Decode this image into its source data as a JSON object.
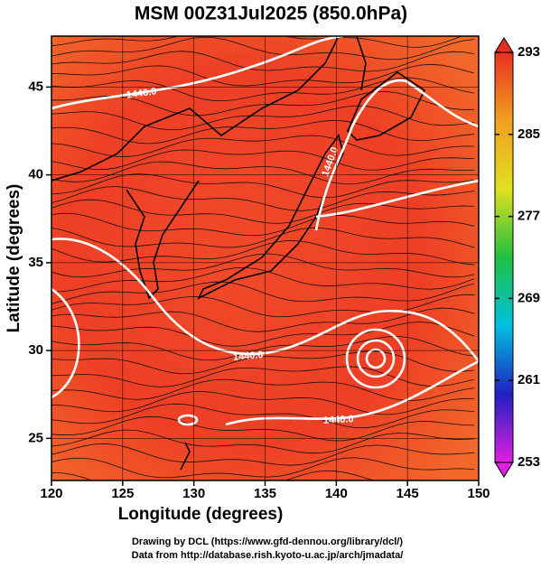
{
  "title": "MSM 00Z31Jul2025 (850.0hPa)",
  "x_axis": {
    "label": "Longitude (degrees)",
    "lim": [
      120,
      150
    ],
    "ticks": [
      120,
      125,
      130,
      135,
      140,
      145,
      150
    ]
  },
  "y_axis": {
    "label": "Latitude  (degrees)",
    "lim": [
      22.6,
      47.9
    ],
    "ticks": [
      25,
      30,
      35,
      40,
      45
    ]
  },
  "colorbar": {
    "lim": [
      253,
      293
    ],
    "ticks": [
      253,
      261,
      269,
      277,
      285,
      293
    ],
    "colors": [
      "#e020e0",
      "#2020c0",
      "#00c0e0",
      "#20c040",
      "#e0e020",
      "#f0a020",
      "#e83020"
    ]
  },
  "contour_labels": [
    "1440.0",
    "1440.0",
    "1440.0",
    "1440.0"
  ],
  "footer": [
    "Drawing by DCL (https://www.gfd-dennou.org/library/dcl/)",
    "Data from http://database.rish.kyoto-u.ac.jp/arch/jmadata/"
  ]
}
